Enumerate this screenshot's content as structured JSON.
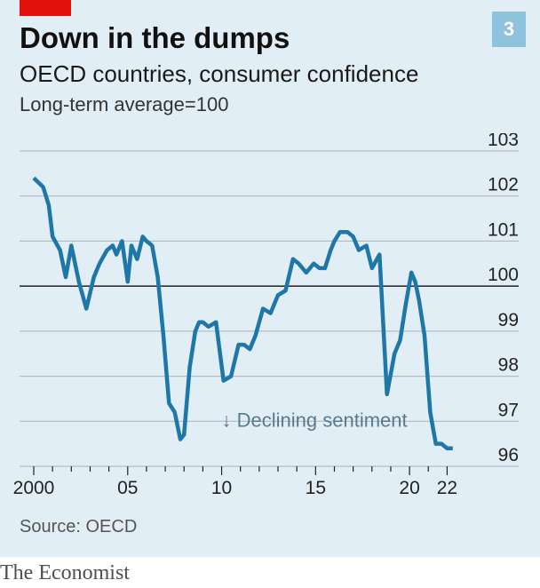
{
  "header": {
    "badge": "3",
    "title": "Down in the dumps",
    "subtitle": "OECD countries, consumer confidence",
    "note": "Long-term average=100"
  },
  "footer": {
    "source": "Source: OECD",
    "brand": "The Economist"
  },
  "colors": {
    "panel": "#e2eef5",
    "line": "#1f77a8",
    "red": "#e3120b",
    "badge": "#8fc2dc",
    "grid": "#a9b2b8",
    "baseline": "#222222",
    "annotation": "#5b7a8c"
  },
  "chart_data": {
    "type": "line",
    "title": "Down in the dumps",
    "subtitle": "OECD countries, consumer confidence",
    "ylabel": "Long-term average=100",
    "ylim": [
      96,
      103
    ],
    "xlim": [
      2000,
      2022.5
    ],
    "yticks": [
      96,
      97,
      98,
      99,
      100,
      101,
      102,
      103
    ],
    "xticks": [
      {
        "value": 2000,
        "label": "2000"
      },
      {
        "value": 2005,
        "label": "05"
      },
      {
        "value": 2010,
        "label": "10"
      },
      {
        "value": 2015,
        "label": "15"
      },
      {
        "value": 2020,
        "label": "20"
      },
      {
        "value": 2022,
        "label": "22"
      }
    ],
    "reference_line": 100,
    "grid": true,
    "annotation": "↓ Declining sentiment",
    "series": [
      {
        "x": [
          2000.0,
          2000.5,
          2000.8,
          2001.0,
          2001.4,
          2001.7,
          2002.0,
          2002.4,
          2002.8,
          2003.2,
          2003.5,
          2003.9,
          2004.2,
          2004.4,
          2004.7,
          2005.0,
          2005.2,
          2005.5,
          2005.8,
          2006.0,
          2006.3,
          2006.6,
          2006.9,
          2007.2,
          2007.5,
          2007.8,
          2008.0,
          2008.3,
          2008.6,
          2008.8,
          2009.0,
          2009.3,
          2009.7,
          2010.1,
          2010.5,
          2010.9,
          2011.2,
          2011.5,
          2011.8,
          2012.2,
          2012.6,
          2013.0,
          2013.4,
          2013.8,
          2014.1,
          2014.5,
          2014.9,
          2015.2,
          2015.5,
          2015.8,
          2016.0,
          2016.3,
          2016.7,
          2017.0,
          2017.3,
          2017.7,
          2018.0,
          2018.4,
          2018.8,
          2019.2,
          2019.5,
          2019.8,
          2020.1,
          2020.3,
          2020.5,
          2020.8,
          2021.1,
          2021.4,
          2021.7,
          2022.0,
          2022.3
        ],
        "y": [
          102.4,
          102.2,
          101.8,
          101.1,
          100.8,
          100.2,
          100.9,
          100.1,
          99.5,
          100.2,
          100.5,
          100.8,
          100.9,
          100.7,
          101.0,
          100.1,
          100.9,
          100.6,
          101.1,
          101.0,
          100.9,
          100.2,
          98.9,
          97.4,
          97.2,
          96.6,
          96.7,
          98.2,
          99.0,
          99.2,
          99.2,
          99.1,
          99.2,
          97.9,
          98.0,
          98.7,
          98.7,
          98.6,
          98.9,
          99.5,
          99.4,
          99.8,
          99.9,
          100.6,
          100.5,
          100.3,
          100.5,
          100.4,
          100.4,
          100.8,
          101.0,
          101.2,
          101.2,
          101.1,
          100.8,
          100.9,
          100.4,
          100.7,
          97.6,
          98.5,
          98.8,
          99.6,
          100.3,
          100.1,
          99.7,
          98.9,
          97.2,
          96.5,
          96.5,
          96.4,
          96.4
        ]
      }
    ]
  }
}
